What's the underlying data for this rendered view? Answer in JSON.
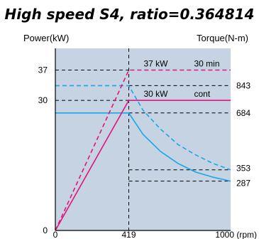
{
  "chart_data": {
    "type": "line",
    "title": "High speed S4, ratio=0.364814",
    "left_axis_label": "Power(kW)",
    "right_axis_label": "Torque(N-m)",
    "x_unit_label": "1000 (rpm)",
    "xlim": [
      0,
      1000
    ],
    "power_ylim": [
      0,
      42
    ],
    "torque_ylim": [
      0,
      1060
    ],
    "x_ticks": [
      0,
      419
    ],
    "power_ticks": [
      0,
      30,
      37
    ],
    "torque_ticks": [
      287,
      353,
      684,
      843
    ],
    "power_series": [
      {
        "name": "30 min",
        "label_value": "37 kW",
        "color": "#e0157f",
        "dash": true,
        "x": [
          0,
          419,
          1000
        ],
        "y": [
          0,
          37,
          37
        ]
      },
      {
        "name": "cont",
        "label_value": "30 kW",
        "color": "#e0157f",
        "dash": false,
        "x": [
          0,
          419,
          1000
        ],
        "y": [
          0,
          30,
          30
        ]
      }
    ],
    "torque_series": [
      {
        "name": "30 min",
        "color": "#1ba6e8",
        "dash": true,
        "x": [
          0,
          419,
          500,
          600,
          700,
          800,
          900,
          1000
        ],
        "y": [
          843,
          843,
          700,
          590,
          500,
          440,
          390,
          353
        ]
      },
      {
        "name": "cont",
        "color": "#1ba6e8",
        "dash": false,
        "x": [
          0,
          419,
          500,
          600,
          700,
          800,
          900,
          1000
        ],
        "y": [
          684,
          684,
          560,
          460,
          390,
          340,
          310,
          287
        ]
      }
    ],
    "grid": false
  }
}
